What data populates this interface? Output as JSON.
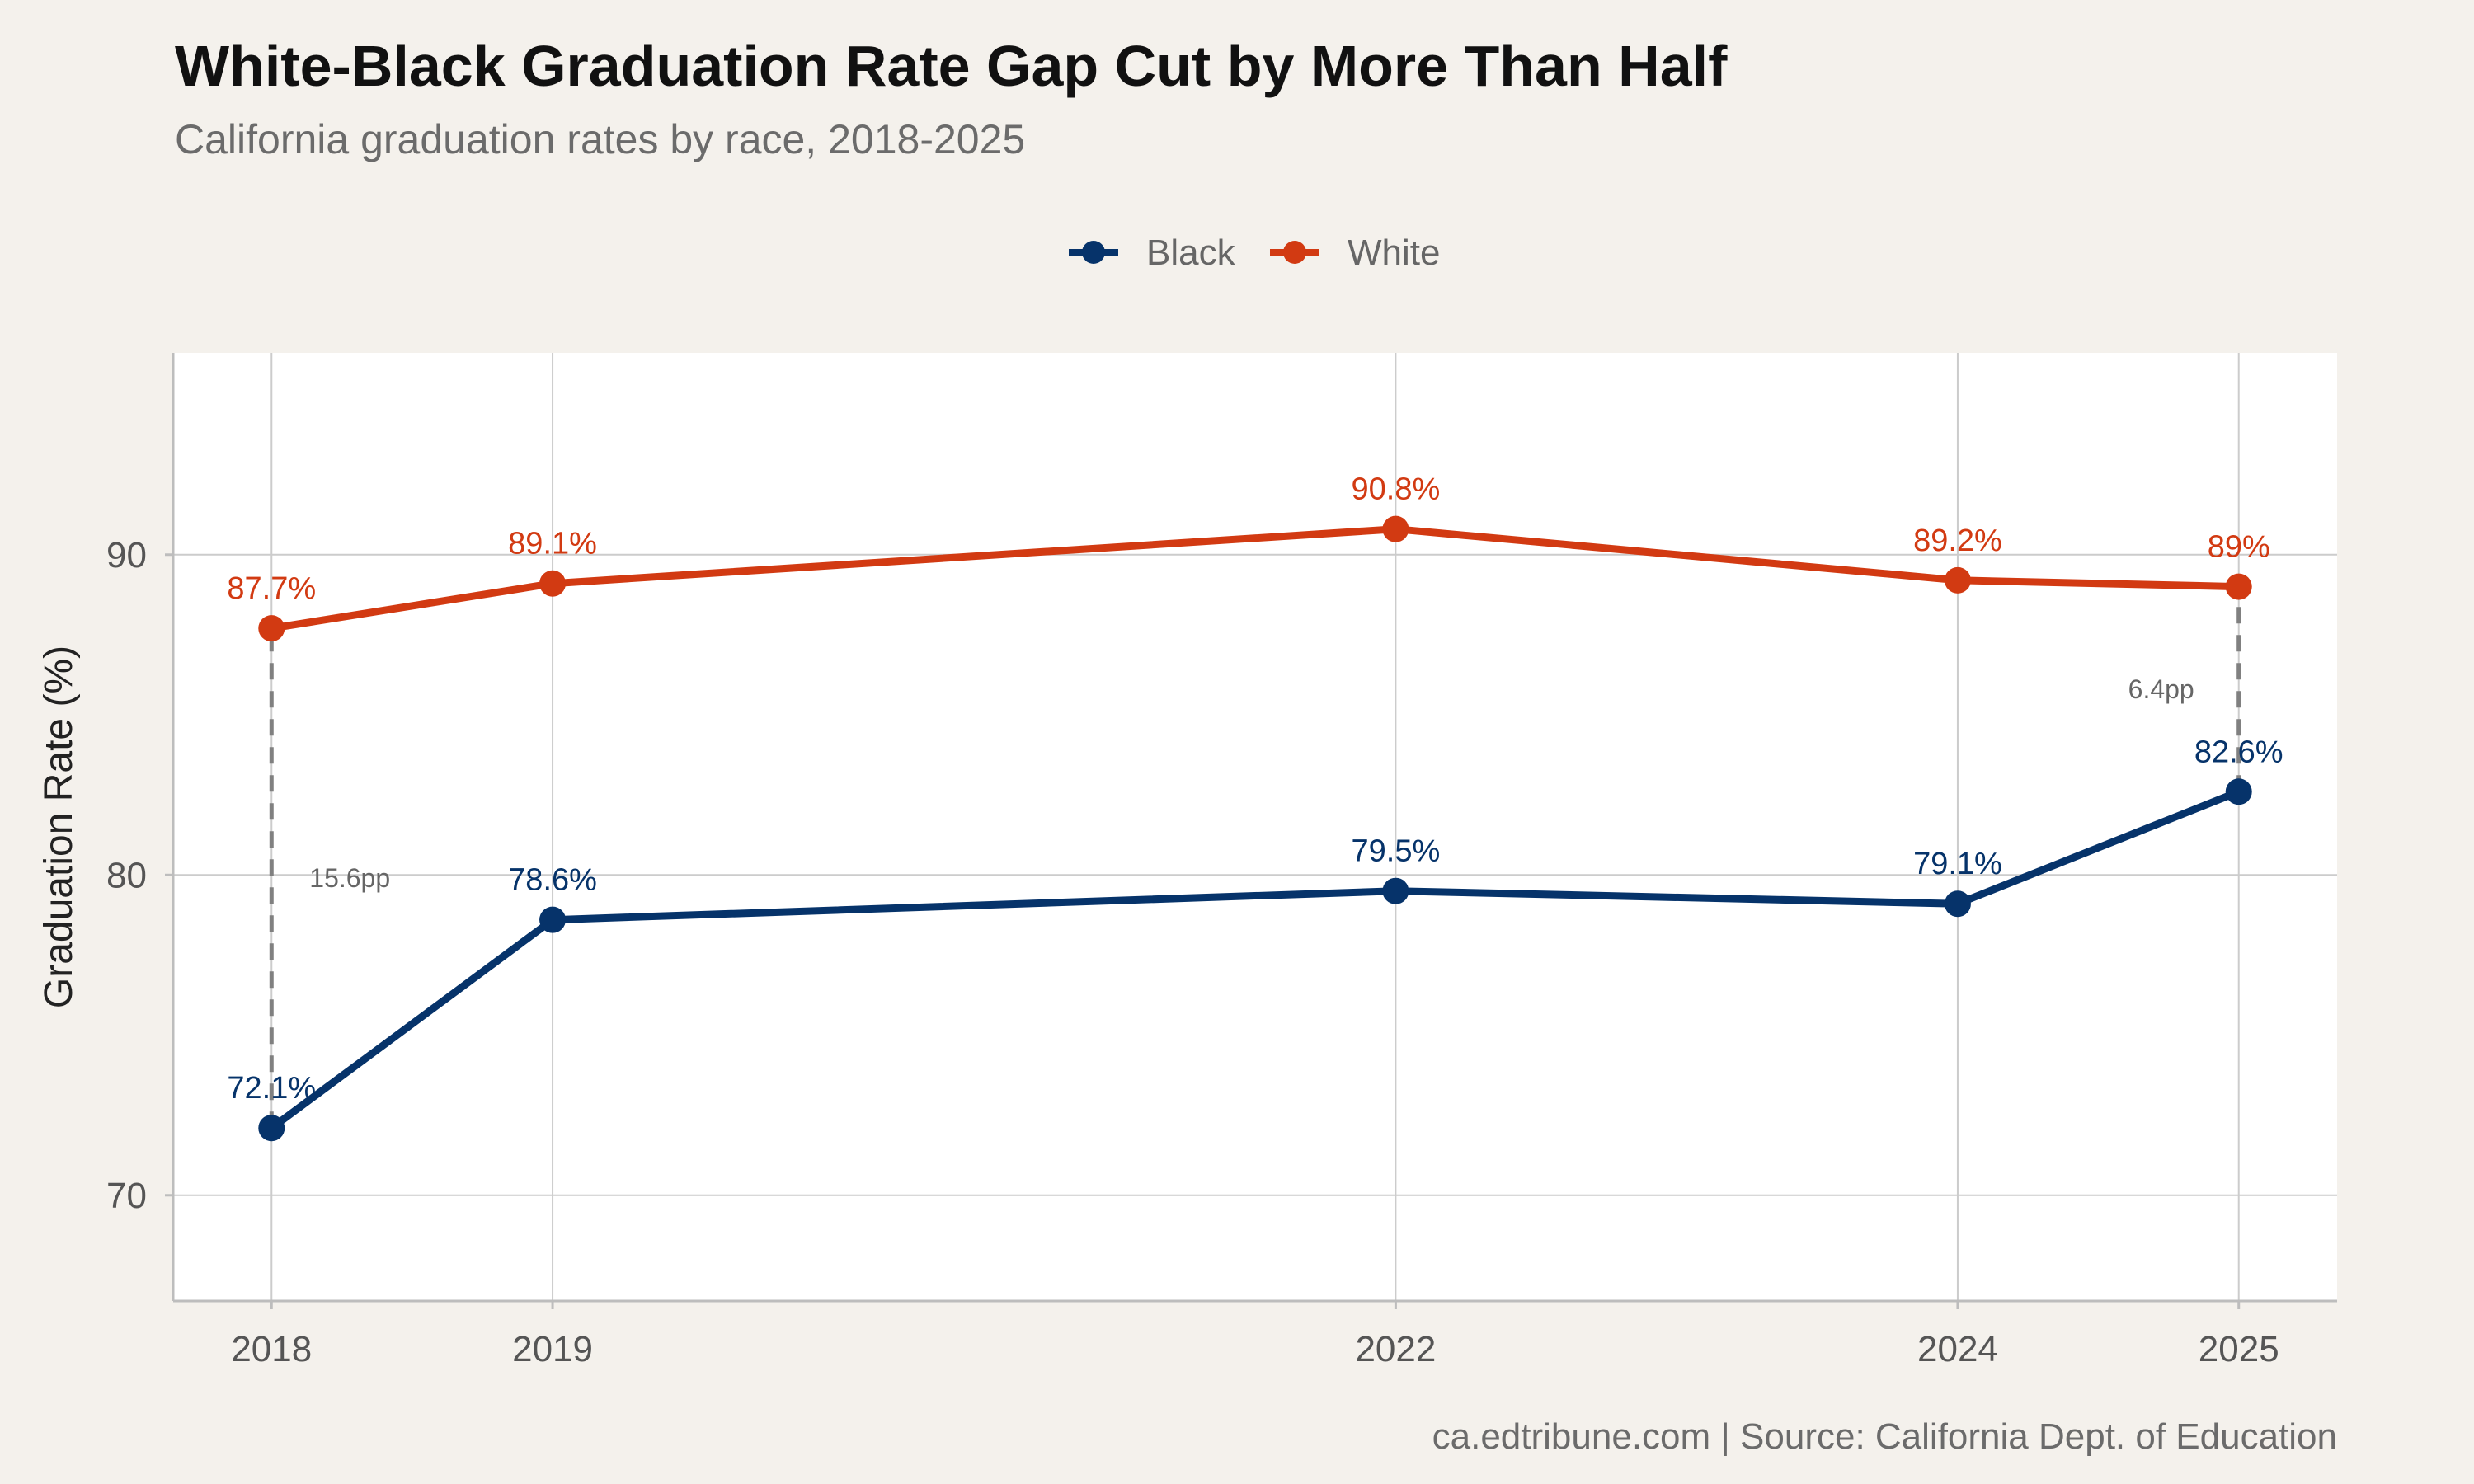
{
  "title": "White-Black Graduation Rate Gap Cut by More Than Half",
  "subtitle": "California graduation rates by race, 2018-2025",
  "caption": "ca.edtribune.com | Source: California Dept. of Education",
  "colors": {
    "background": "#f4f1ec",
    "panel": "#ffffff",
    "grid": "#cccccc",
    "black_series": "#06336a",
    "white_series": "#d23a12",
    "gap_line": "#808080"
  },
  "chart_data": {
    "type": "line",
    "title": "White-Black Graduation Rate Gap Cut by More Than Half",
    "subtitle": "California graduation rates by race, 2018-2025",
    "xlabel": "",
    "ylabel": "Graduation Rate (%)",
    "x": [
      2018,
      2019,
      2022,
      2024,
      2025
    ],
    "x_tick_labels": [
      "2018",
      "2019",
      "2022",
      "2024",
      "2025"
    ],
    "xlim": [
      2017.65,
      2025.35
    ],
    "ylim": [
      66.7,
      96.3
    ],
    "y_ticks": [
      70,
      80,
      90
    ],
    "y_tick_labels": [
      "70",
      "80",
      "90"
    ],
    "grid": true,
    "legend_position": "top",
    "series": [
      {
        "name": "Black",
        "color": "#06336a",
        "values": [
          72.1,
          78.6,
          79.5,
          79.1,
          82.6
        ],
        "labels": [
          "72.1%",
          "78.6%",
          "79.5%",
          "79.1%",
          "82.6%"
        ]
      },
      {
        "name": "White",
        "color": "#d23a12",
        "values": [
          87.7,
          89.1,
          90.8,
          89.2,
          89.0
        ],
        "labels": [
          "87.7%",
          "89.1%",
          "90.8%",
          "89.2%",
          "89%"
        ]
      }
    ],
    "annotations": [
      {
        "x": 2018,
        "from": 72.1,
        "to": 87.7,
        "label": "15.6pp"
      },
      {
        "x": 2025,
        "from": 82.6,
        "to": 89.0,
        "label": "6.4pp"
      }
    ]
  }
}
